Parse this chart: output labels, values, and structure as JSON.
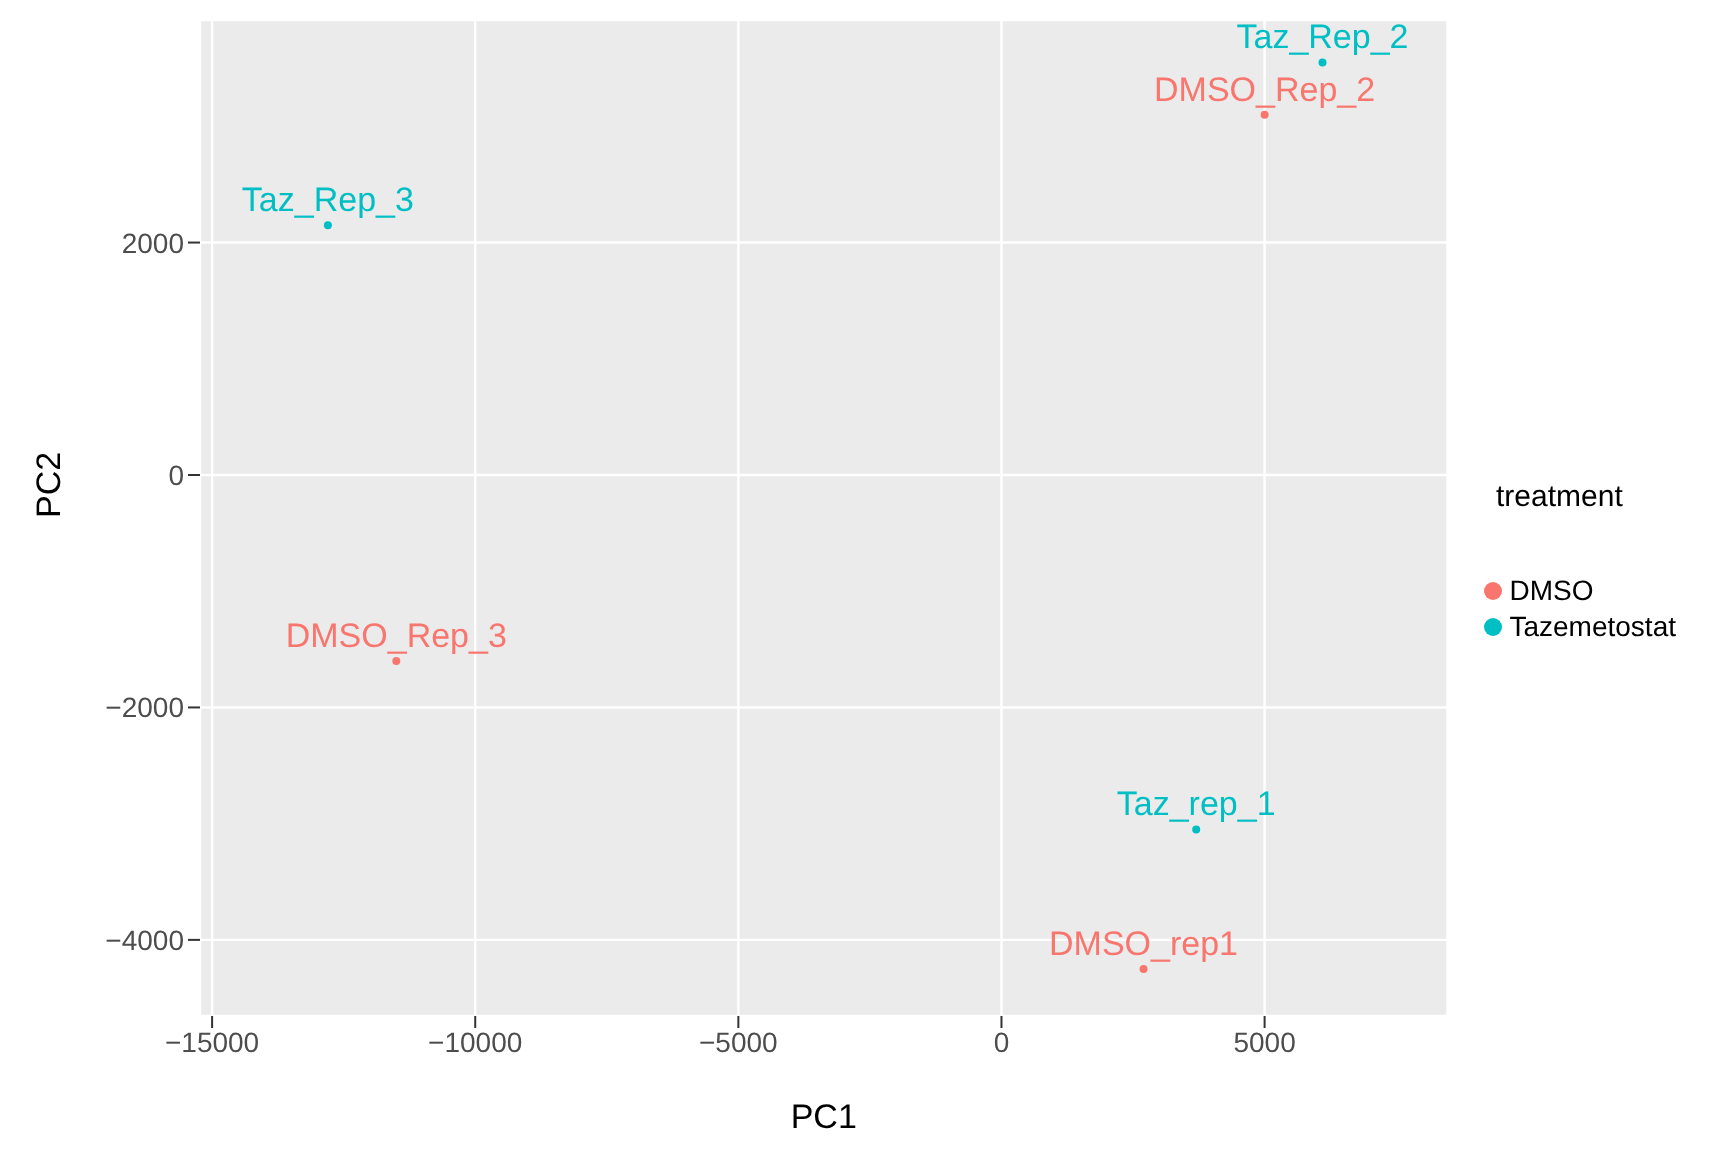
{
  "chart_data": {
    "type": "scatter",
    "xlabel": "PC1",
    "ylabel": "PC2",
    "legend_title": "treatment",
    "legend": "right",
    "marker": "circle",
    "grid": true,
    "xlim": [
      -15230,
      8475
    ],
    "ylim": [
      -4655,
      3915
    ],
    "xticks": [
      -15000,
      -10000,
      -5000,
      0,
      5000
    ],
    "yticks": [
      -4000,
      -2000,
      0,
      2000
    ],
    "series": [
      {
        "name": "DMSO",
        "color": "#f8766d",
        "x": [
          5000,
          -11500,
          2700
        ],
        "values": [
          3100,
          -1600,
          -4250
        ]
      },
      {
        "name": "Tazemetostat",
        "color": "#00bfc4",
        "x": [
          6100,
          -12800,
          3700
        ],
        "values": [
          3550,
          2150,
          -3050
        ]
      }
    ],
    "annotations": [
      {
        "text": "DMSO_Rep_2",
        "x": 5000,
        "y": 3100
      },
      {
        "text": "DMSO_Rep_3",
        "x": -11500,
        "y": -1600
      },
      {
        "text": "DMSO_rep1",
        "x": 2700,
        "y": -4250
      },
      {
        "text": "Taz_Rep_2",
        "x": 6100,
        "y": 3550
      },
      {
        "text": "Taz_Rep_3",
        "x": -12800,
        "y": 2150
      },
      {
        "text": "Taz_rep_1",
        "x": 3700,
        "y": -3050
      }
    ]
  }
}
